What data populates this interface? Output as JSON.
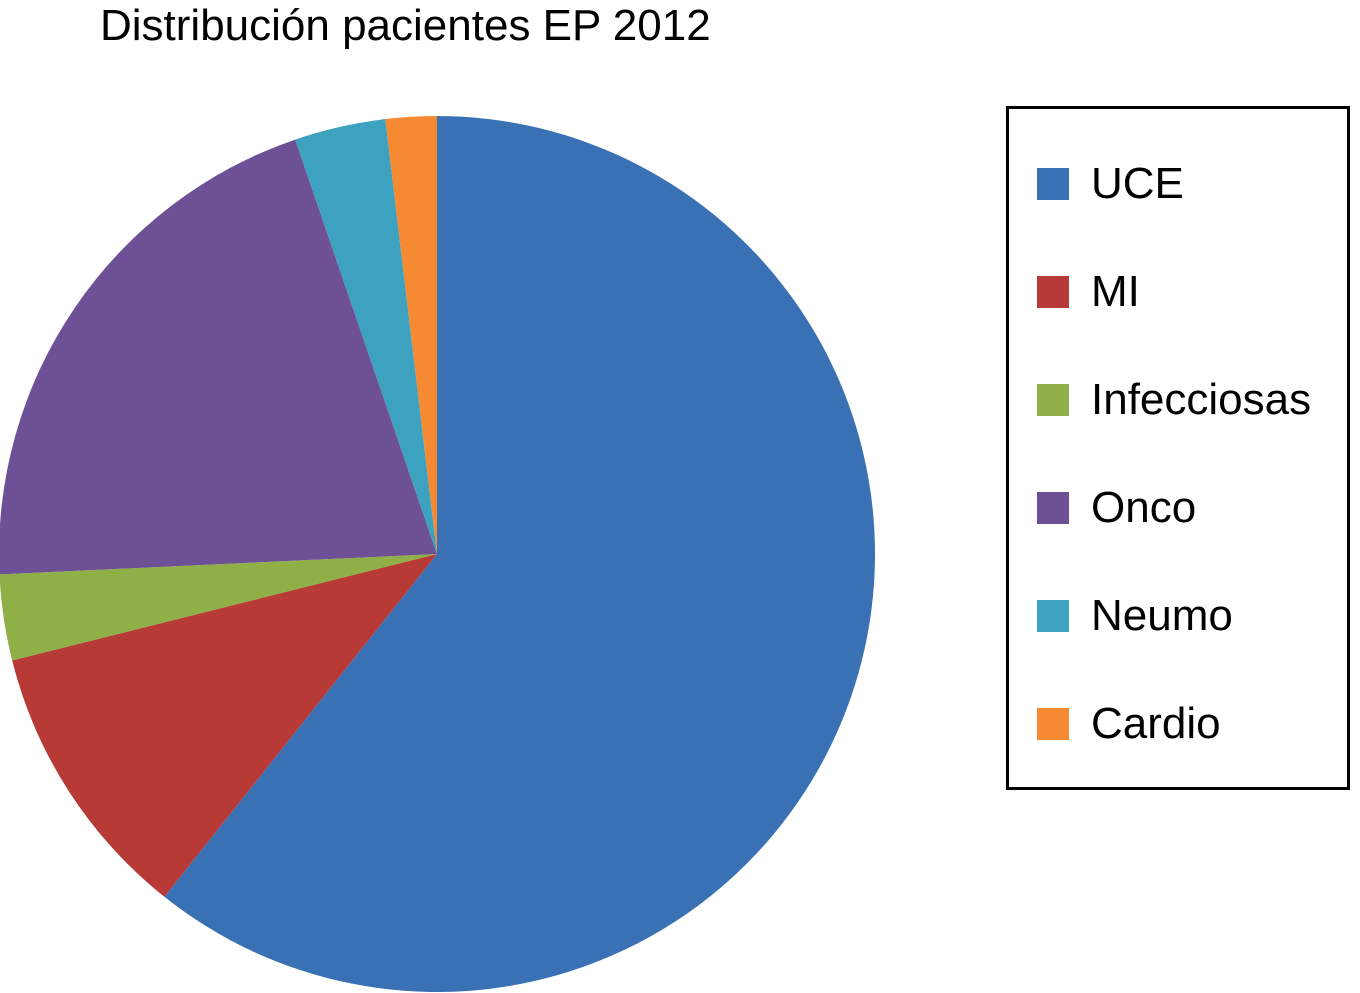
{
  "chart_data": {
    "type": "pie",
    "title": "Distribución pacientes EP 2012",
    "legend_position": "right",
    "start_angle_deg": 0,
    "direction": "clockwise",
    "slices": [
      {
        "label": "UCE",
        "value": 61.3,
        "color": "#3A70B4"
      },
      {
        "label": "MI",
        "value": 10.5,
        "color": "#B83A37"
      },
      {
        "label": "Infecciosas",
        "value": 3.2,
        "color": "#8FB047"
      },
      {
        "label": "Onco",
        "value": 20.7,
        "color": "#6D5095"
      },
      {
        "label": "Neumo",
        "value": 3.4,
        "color": "#3DA2C0"
      },
      {
        "label": "Cardio",
        "value": 1.9,
        "color": "#F58A33"
      }
    ]
  }
}
